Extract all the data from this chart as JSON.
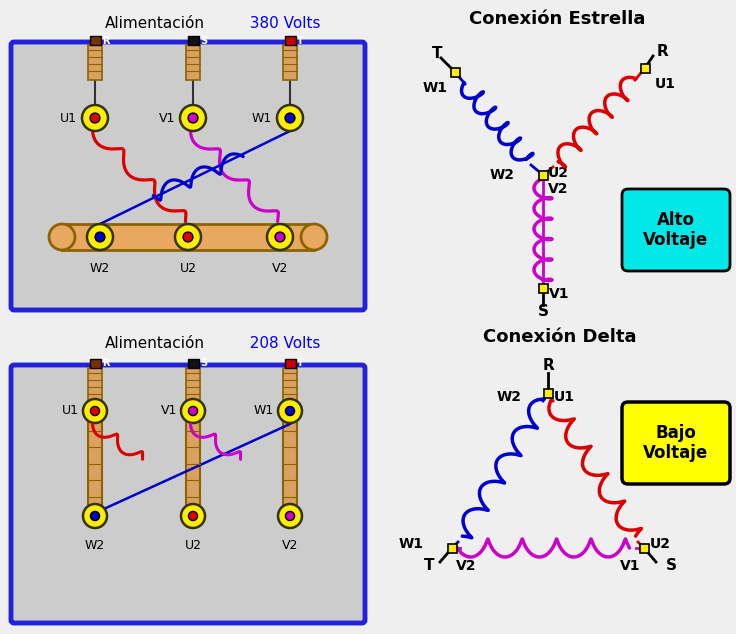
{
  "bg_color": "#efefef",
  "panel_bg": "#cccccc",
  "panel_border": "#2222dd",
  "bus_color": "#e8a860",
  "wire_red": "#dd0000",
  "wire_blue": "#0000cc",
  "wire_magenta": "#cc00cc",
  "terminal_yellow": "#ffee00",
  "cyan_box": "#00e8e8",
  "yellow_box": "#ffff00",
  "brown_cap": "#7B3000",
  "black_cap": "#111111",
  "red_cap": "#cc0000",
  "skin_color": "#daa060",
  "skin_edge": "#8B6400",
  "title_380_black": "Alimentación",
  "title_380_blue": "  380 Volts",
  "title_208_black": "Alimentación",
  "title_208_blue": "  208 Volts",
  "title_estrella": "Conexión Estrella",
  "title_delta": "Conexión Delta",
  "alto_voltaje": "Alto\nVoltaje",
  "bajo_voltaje": "Bajo\nVoltaje"
}
